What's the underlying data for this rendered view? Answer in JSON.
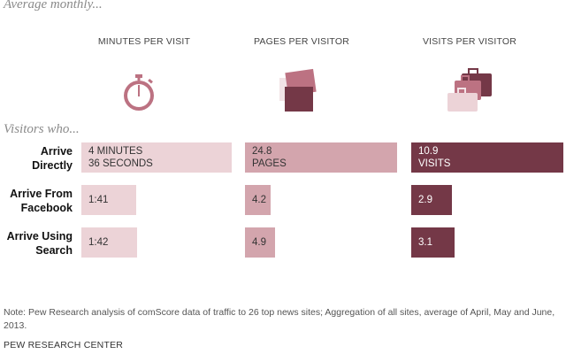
{
  "subtitle": "Average monthly...",
  "visitors_label": "Visitors who...",
  "note": "Note: Pew Research analysis of comScore data of traffic to 26 top news sites; Aggregation of all sites, average of April, May and June, 2013.",
  "credit": "PEW RESEARCH CENTER",
  "icons": [
    "stopwatch-icon",
    "pages-icon",
    "suitcases-icon"
  ],
  "colors": {
    "minutes": "#ecd3d7",
    "pages": "#d3a5ad",
    "visits": "#743847",
    "icon_dark": "#743847",
    "icon_mid": "#bc7282",
    "icon_light": "#ecd3d7"
  },
  "chart_data": {
    "type": "bar",
    "categories": [
      "Arrive Directly",
      "Arrive From Facebook",
      "Arrive Using Search"
    ],
    "series": [
      {
        "name": "MINUTES PER VISIT",
        "values": [
          4.6,
          1.6833,
          1.7
        ],
        "labels": [
          [
            "4 MINUTES",
            "36 SECONDS"
          ],
          [
            "1:41"
          ],
          [
            "1:42"
          ]
        ]
      },
      {
        "name": "PAGES PER VISITOR",
        "values": [
          24.8,
          4.2,
          4.9
        ],
        "labels": [
          [
            "24.8",
            "PAGES"
          ],
          [
            "4.2"
          ],
          [
            "4.9"
          ]
        ]
      },
      {
        "name": "VISITS PER VISITOR",
        "values": [
          10.9,
          2.9,
          3.1
        ],
        "labels": [
          [
            "10.9",
            "VISITS"
          ],
          [
            "2.9"
          ],
          [
            "3.1"
          ]
        ]
      }
    ]
  }
}
